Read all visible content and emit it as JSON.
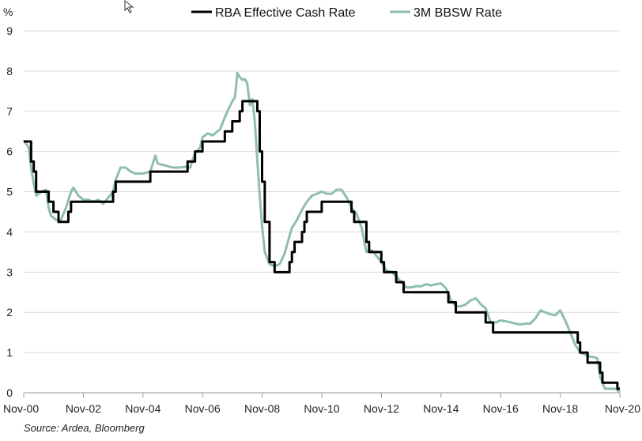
{
  "chart_data": {
    "type": "line",
    "y_unit_label": "%",
    "ylim": [
      0,
      9
    ],
    "yticks": [
      "0",
      "1",
      "2",
      "3",
      "4",
      "5",
      "6",
      "7",
      "8",
      "9"
    ],
    "xlim": [
      2000.833,
      2020.833
    ],
    "xticks": [
      {
        "label": "Nov-00",
        "x": 2000.833
      },
      {
        "label": "Nov-02",
        "x": 2002.833
      },
      {
        "label": "Nov-04",
        "x": 2004.833
      },
      {
        "label": "Nov-06",
        "x": 2006.833
      },
      {
        "label": "Nov-08",
        "x": 2008.833
      },
      {
        "label": "Nov-10",
        "x": 2010.833
      },
      {
        "label": "Nov-12",
        "x": 2012.833
      },
      {
        "label": "Nov-14",
        "x": 2014.833
      },
      {
        "label": "Nov-16",
        "x": 2016.833
      },
      {
        "label": "Nov-18",
        "x": 2018.833
      },
      {
        "label": "Nov-20",
        "x": 2020.833
      }
    ],
    "grid": "horizontal",
    "legend_position": "top",
    "series": [
      {
        "name": "RBA Effective Cash Rate",
        "color": "#000000",
        "step": true,
        "points": [
          [
            2000.833,
            6.25
          ],
          [
            2001.0,
            6.25
          ],
          [
            2001.08,
            5.75
          ],
          [
            2001.17,
            5.5
          ],
          [
            2001.25,
            5.0
          ],
          [
            2001.67,
            4.75
          ],
          [
            2001.83,
            4.5
          ],
          [
            2001.92,
            4.5
          ],
          [
            2002.0,
            4.25
          ],
          [
            2002.33,
            4.5
          ],
          [
            2002.42,
            4.75
          ],
          [
            2003.83,
            5.0
          ],
          [
            2003.92,
            5.25
          ],
          [
            2005.08,
            5.5
          ],
          [
            2006.33,
            5.75
          ],
          [
            2006.58,
            6.0
          ],
          [
            2006.83,
            6.25
          ],
          [
            2007.58,
            6.5
          ],
          [
            2007.83,
            6.75
          ],
          [
            2008.08,
            7.0
          ],
          [
            2008.17,
            7.25
          ],
          [
            2008.67,
            7.0
          ],
          [
            2008.75,
            6.0
          ],
          [
            2008.83,
            5.25
          ],
          [
            2008.92,
            4.25
          ],
          [
            2009.08,
            3.25
          ],
          [
            2009.17,
            3.25
          ],
          [
            2009.25,
            3.0
          ],
          [
            2009.75,
            3.25
          ],
          [
            2009.83,
            3.5
          ],
          [
            2009.92,
            3.75
          ],
          [
            2010.17,
            4.0
          ],
          [
            2010.25,
            4.25
          ],
          [
            2010.33,
            4.5
          ],
          [
            2010.83,
            4.75
          ],
          [
            2011.83,
            4.5
          ],
          [
            2011.92,
            4.25
          ],
          [
            2012.33,
            3.75
          ],
          [
            2012.42,
            3.5
          ],
          [
            2012.83,
            3.25
          ],
          [
            2012.92,
            3.0
          ],
          [
            2013.33,
            2.75
          ],
          [
            2013.58,
            2.5
          ],
          [
            2015.08,
            2.25
          ],
          [
            2015.33,
            2.0
          ],
          [
            2016.33,
            1.75
          ],
          [
            2016.58,
            1.5
          ],
          [
            2019.42,
            1.25
          ],
          [
            2019.5,
            1.0
          ],
          [
            2019.75,
            0.75
          ],
          [
            2020.17,
            0.5
          ],
          [
            2020.25,
            0.25
          ],
          [
            2020.75,
            0.1
          ],
          [
            2020.833,
            0.1
          ]
        ]
      },
      {
        "name": "3M BBSW Rate",
        "color": "#8fbfab",
        "step": false,
        "points": [
          [
            2000.833,
            6.28
          ],
          [
            2001.0,
            6.1
          ],
          [
            2001.08,
            5.6
          ],
          [
            2001.17,
            5.2
          ],
          [
            2001.25,
            4.9
          ],
          [
            2001.42,
            5.0
          ],
          [
            2001.58,
            5.05
          ],
          [
            2001.67,
            4.6
          ],
          [
            2001.75,
            4.4
          ],
          [
            2001.92,
            4.3
          ],
          [
            2002.08,
            4.3
          ],
          [
            2002.25,
            4.6
          ],
          [
            2002.42,
            5.0
          ],
          [
            2002.5,
            5.1
          ],
          [
            2002.67,
            4.9
          ],
          [
            2002.83,
            4.8
          ],
          [
            2003.0,
            4.8
          ],
          [
            2003.17,
            4.75
          ],
          [
            2003.33,
            4.8
          ],
          [
            2003.5,
            4.7
          ],
          [
            2003.67,
            4.85
          ],
          [
            2003.83,
            5.0
          ],
          [
            2003.92,
            5.3
          ],
          [
            2004.08,
            5.6
          ],
          [
            2004.25,
            5.6
          ],
          [
            2004.42,
            5.5
          ],
          [
            2004.58,
            5.45
          ],
          [
            2004.83,
            5.45
          ],
          [
            2005.08,
            5.5
          ],
          [
            2005.25,
            5.9
          ],
          [
            2005.33,
            5.7
          ],
          [
            2005.58,
            5.65
          ],
          [
            2005.83,
            5.6
          ],
          [
            2006.08,
            5.6
          ],
          [
            2006.25,
            5.62
          ],
          [
            2006.42,
            5.6
          ],
          [
            2006.5,
            5.8
          ],
          [
            2006.58,
            5.95
          ],
          [
            2006.75,
            6.1
          ],
          [
            2006.83,
            6.35
          ],
          [
            2007.0,
            6.45
          ],
          [
            2007.17,
            6.4
          ],
          [
            2007.33,
            6.5
          ],
          [
            2007.42,
            6.55
          ],
          [
            2007.58,
            6.85
          ],
          [
            2007.67,
            7.0
          ],
          [
            2007.83,
            7.25
          ],
          [
            2007.92,
            7.35
          ],
          [
            2008.0,
            7.95
          ],
          [
            2008.08,
            7.85
          ],
          [
            2008.17,
            7.78
          ],
          [
            2008.25,
            7.8
          ],
          [
            2008.33,
            7.7
          ],
          [
            2008.42,
            7.15
          ],
          [
            2008.5,
            7.3
          ],
          [
            2008.58,
            6.8
          ],
          [
            2008.67,
            5.8
          ],
          [
            2008.75,
            4.9
          ],
          [
            2008.83,
            4.15
          ],
          [
            2008.92,
            3.5
          ],
          [
            2009.08,
            3.2
          ],
          [
            2009.25,
            3.15
          ],
          [
            2009.42,
            3.2
          ],
          [
            2009.58,
            3.45
          ],
          [
            2009.75,
            3.9
          ],
          [
            2009.83,
            4.1
          ],
          [
            2010.0,
            4.3
          ],
          [
            2010.17,
            4.55
          ],
          [
            2010.33,
            4.75
          ],
          [
            2010.5,
            4.9
          ],
          [
            2010.67,
            4.95
          ],
          [
            2010.83,
            5.0
          ],
          [
            2011.0,
            4.95
          ],
          [
            2011.17,
            4.95
          ],
          [
            2011.33,
            5.05
          ],
          [
            2011.5,
            5.05
          ],
          [
            2011.67,
            4.85
          ],
          [
            2011.83,
            4.6
          ],
          [
            2012.0,
            4.45
          ],
          [
            2012.17,
            4.1
          ],
          [
            2012.33,
            3.5
          ],
          [
            2012.5,
            3.55
          ],
          [
            2012.67,
            3.4
          ],
          [
            2012.83,
            3.25
          ],
          [
            2013.0,
            3.05
          ],
          [
            2013.17,
            3.0
          ],
          [
            2013.33,
            2.9
          ],
          [
            2013.5,
            2.75
          ],
          [
            2013.67,
            2.62
          ],
          [
            2013.83,
            2.62
          ],
          [
            2014.0,
            2.65
          ],
          [
            2014.17,
            2.65
          ],
          [
            2014.33,
            2.7
          ],
          [
            2014.5,
            2.67
          ],
          [
            2014.67,
            2.7
          ],
          [
            2014.83,
            2.72
          ],
          [
            2015.0,
            2.6
          ],
          [
            2015.17,
            2.3
          ],
          [
            2015.33,
            2.15
          ],
          [
            2015.5,
            2.15
          ],
          [
            2015.67,
            2.2
          ],
          [
            2015.83,
            2.3
          ],
          [
            2016.0,
            2.35
          ],
          [
            2016.17,
            2.2
          ],
          [
            2016.33,
            2.1
          ],
          [
            2016.5,
            1.75
          ],
          [
            2016.67,
            1.75
          ],
          [
            2016.83,
            1.8
          ],
          [
            2017.0,
            1.78
          ],
          [
            2017.17,
            1.75
          ],
          [
            2017.33,
            1.72
          ],
          [
            2017.5,
            1.7
          ],
          [
            2017.67,
            1.72
          ],
          [
            2017.83,
            1.72
          ],
          [
            2018.0,
            1.85
          ],
          [
            2018.17,
            2.05
          ],
          [
            2018.33,
            2.0
          ],
          [
            2018.5,
            1.95
          ],
          [
            2018.67,
            1.93
          ],
          [
            2018.83,
            2.05
          ],
          [
            2019.0,
            1.8
          ],
          [
            2019.17,
            1.5
          ],
          [
            2019.33,
            1.2
          ],
          [
            2019.5,
            1.0
          ],
          [
            2019.67,
            0.95
          ],
          [
            2019.83,
            0.9
          ],
          [
            2020.0,
            0.88
          ],
          [
            2020.08,
            0.85
          ],
          [
            2020.17,
            0.4
          ],
          [
            2020.33,
            0.1
          ],
          [
            2020.5,
            0.1
          ],
          [
            2020.67,
            0.1
          ],
          [
            2020.833,
            0.02
          ]
        ]
      }
    ],
    "source": "Source: Ardea, Bloomberg"
  }
}
